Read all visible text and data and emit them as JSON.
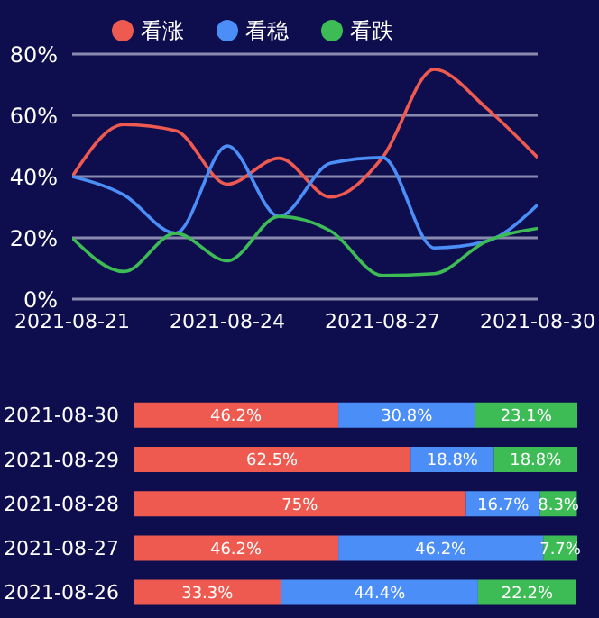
{
  "chart_data": [
    {
      "type": "line",
      "x": [
        "2021-08-21",
        "2021-08-22",
        "2021-08-23",
        "2021-08-24",
        "2021-08-25",
        "2021-08-26",
        "2021-08-27",
        "2021-08-28",
        "2021-08-29",
        "2021-08-30"
      ],
      "series": [
        {
          "name": "看涨",
          "color": "#ee5a4f",
          "values": [
            40,
            57,
            55,
            37.5,
            46,
            33.3,
            46.2,
            75,
            62.5,
            46.2
          ]
        },
        {
          "name": "看稳",
          "color": "#4b8ef7",
          "values": [
            40,
            34,
            21.5,
            50,
            27,
            44.4,
            46.2,
            16.7,
            18.8,
            30.8
          ]
        },
        {
          "name": "看跌",
          "color": "#3dbb55",
          "values": [
            20,
            9,
            21.5,
            12.5,
            27,
            22.2,
            7.7,
            8.3,
            18.8,
            23.1
          ]
        }
      ],
      "xlim": [
        "2021-08-21",
        "2021-08-30"
      ],
      "xticks": [
        "2021-08-21",
        "2021-08-24",
        "2021-08-27",
        "2021-08-30"
      ],
      "ylim": [
        0,
        80
      ],
      "yticks": [
        {
          "value": 0,
          "label": "0%"
        },
        {
          "value": 20,
          "label": "20%"
        },
        {
          "value": 40,
          "label": "40%"
        },
        {
          "value": 60,
          "label": "60%"
        },
        {
          "value": 80,
          "label": "80%"
        }
      ],
      "grid": "y",
      "legend": "top",
      "marker": "none",
      "line_style": "solid"
    },
    {
      "type": "bar",
      "orientation": "horizontal",
      "stacked": true,
      "tick_labels": "y",
      "categories": [
        "2021-08-30",
        "2021-08-29",
        "2021-08-28",
        "2021-08-27",
        "2021-08-26"
      ],
      "series": [
        {
          "color": "#ee5a4f",
          "values": [
            46.2,
            62.5,
            75,
            46.2,
            33.3
          ],
          "value_labels": [
            "46.2%",
            "62.5%",
            "75%",
            "46.2%",
            "33.3%"
          ]
        },
        {
          "color": "#4b8ef7",
          "values": [
            30.8,
            18.8,
            16.7,
            46.2,
            44.4
          ],
          "value_labels": [
            "30.8%",
            "18.8%",
            "16.7%",
            "46.2%",
            "44.4%"
          ]
        },
        {
          "color": "#3dbb55",
          "values": [
            23.1,
            18.8,
            8.3,
            7.7,
            22.2
          ],
          "value_labels": [
            "23.1%",
            "18.8%",
            "8.3%",
            "7.7%",
            "22.2%"
          ]
        }
      ]
    }
  ]
}
